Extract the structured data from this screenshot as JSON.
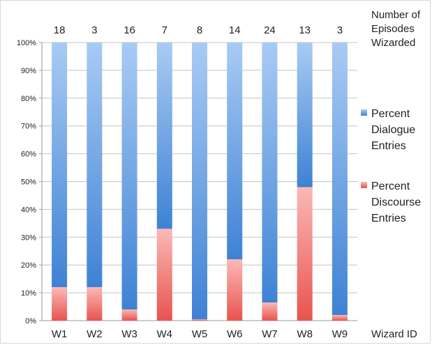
{
  "chart_data": {
    "type": "bar",
    "stacked": true,
    "normalized": true,
    "categories": [
      "W1",
      "W2",
      "W3",
      "W4",
      "W5",
      "W6",
      "W7",
      "W8",
      "W9"
    ],
    "top_labels": [
      "18",
      "3",
      "16",
      "7",
      "8",
      "14",
      "24",
      "13",
      "3"
    ],
    "top_title_lines": [
      "Number of",
      "Episodes",
      "Wizarded"
    ],
    "xlabel": "Wizard ID",
    "ylim": [
      0,
      100
    ],
    "yticks": [
      "0%",
      "10%",
      "20%",
      "30%",
      "40%",
      "50%",
      "60%",
      "70%",
      "80%",
      "90%",
      "100%"
    ],
    "grid": true,
    "legend_position": "right",
    "series": [
      {
        "name": "Percent Discourse Entries",
        "legend_lines": [
          "Percent",
          "Discourse",
          "Entries"
        ],
        "color": "#e8534f",
        "color_light": "#fbb9b6",
        "values": [
          12,
          12,
          4,
          33,
          0.5,
          22,
          6.5,
          48,
          2
        ]
      },
      {
        "name": "Percent Dialogue Entries",
        "legend_lines": [
          "Percent",
          "Dialogue",
          "Entries"
        ],
        "color": "#3e82d4",
        "color_light": "#a9cbf4",
        "values": [
          88,
          88,
          96,
          67,
          99.5,
          78,
          93.5,
          52,
          98
        ]
      }
    ]
  }
}
